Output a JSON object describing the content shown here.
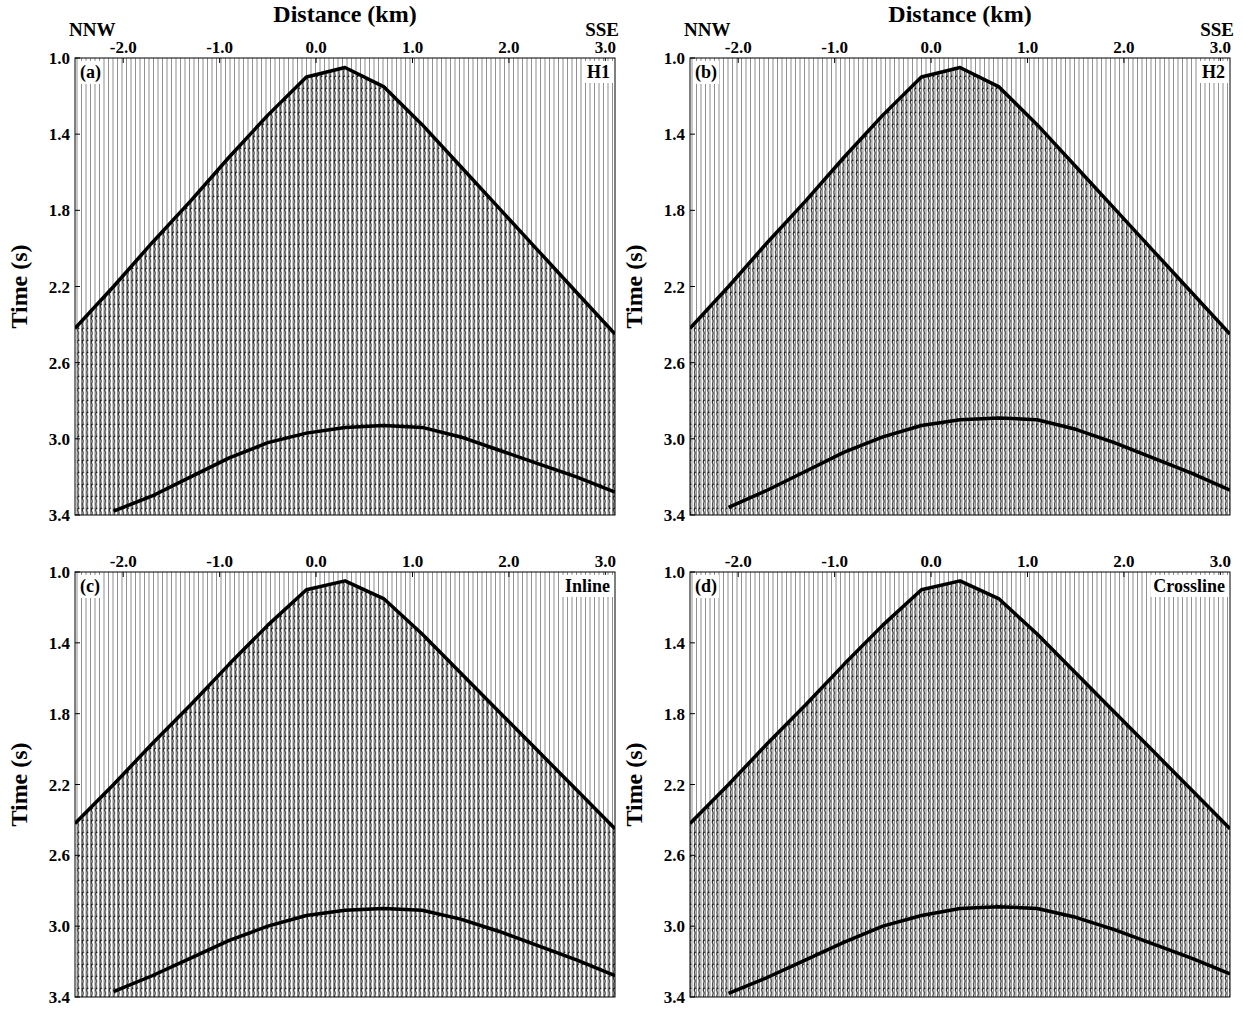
{
  "chart_data": [
    {
      "type": "line",
      "panel_label": "(a)",
      "title": "H1",
      "xlabel": "Distance (km)",
      "ylabel": "Time (s)",
      "annotations": [
        "NNW",
        "SSE"
      ],
      "xlim": [
        -2.5,
        3.1
      ],
      "ylim": [
        1,
        3.4
      ],
      "xticks": [
        {
          "value": -2,
          "label": "-2.0"
        },
        {
          "value": -1,
          "label": "-1.0"
        },
        {
          "value": 0,
          "label": "0.0"
        },
        {
          "value": 1,
          "label": "1.0"
        },
        {
          "value": 2,
          "label": "2.0"
        },
        {
          "value": 3,
          "label": "3.0"
        }
      ],
      "yticks": [
        {
          "value": 1,
          "label": "1.0"
        },
        {
          "value": 1.4,
          "label": "1.4"
        },
        {
          "value": 1.8,
          "label": "1.8"
        },
        {
          "value": 2.2,
          "label": "2.2"
        },
        {
          "value": 2.6,
          "label": "2.6"
        },
        {
          "value": 3,
          "label": "3.0"
        },
        {
          "value": 3.4,
          "label": "3.4"
        }
      ],
      "grid": false,
      "x": [
        -2.5,
        -2.1,
        -1.7,
        -1.3,
        -0.9,
        -0.5,
        -0.1,
        0.3,
        0.7,
        1.1,
        1.5,
        1.9,
        2.3,
        2.7,
        3.1
      ],
      "series": [
        {
          "color": "#000000",
          "values": [
            2.42,
            2.2,
            1.97,
            1.75,
            1.52,
            1.3,
            1.1,
            1.05,
            1.15,
            1.35,
            1.57,
            1.79,
            2.01,
            2.23,
            2.45
          ]
        },
        {
          "color": "#000000",
          "values": [
            null,
            3.38,
            3.3,
            3.2,
            3.1,
            3.02,
            2.97,
            2.94,
            2.93,
            2.94,
            2.99,
            3.06,
            3.13,
            3.2,
            3.28
          ]
        }
      ]
    },
    {
      "type": "line",
      "panel_label": "(b)",
      "title": "H2",
      "xlabel": "Distance (km)",
      "ylabel": "Time (s)",
      "annotations": [
        "NNW",
        "SSE"
      ],
      "xlim": [
        -2.5,
        3.1
      ],
      "ylim": [
        1,
        3.4
      ],
      "xticks": [
        {
          "value": -2,
          "label": "-2.0"
        },
        {
          "value": -1,
          "label": "-1.0"
        },
        {
          "value": 0,
          "label": "0.0"
        },
        {
          "value": 1,
          "label": "1.0"
        },
        {
          "value": 2,
          "label": "2.0"
        },
        {
          "value": 3,
          "label": "3.0"
        }
      ],
      "yticks": [
        {
          "value": 1,
          "label": "1.0"
        },
        {
          "value": 1.4,
          "label": "1.4"
        },
        {
          "value": 1.8,
          "label": "1.8"
        },
        {
          "value": 2.2,
          "label": "2.2"
        },
        {
          "value": 2.6,
          "label": "2.6"
        },
        {
          "value": 3,
          "label": "3.0"
        },
        {
          "value": 3.4,
          "label": "3.4"
        }
      ],
      "grid": false,
      "x": [
        -2.5,
        -2.1,
        -1.7,
        -1.3,
        -0.9,
        -0.5,
        -0.1,
        0.3,
        0.7,
        1.1,
        1.5,
        1.9,
        2.3,
        2.7,
        3.1
      ],
      "series": [
        {
          "color": "#000000",
          "values": [
            2.42,
            2.2,
            1.97,
            1.75,
            1.52,
            1.3,
            1.1,
            1.05,
            1.15,
            1.35,
            1.57,
            1.79,
            2.01,
            2.23,
            2.45
          ]
        },
        {
          "color": "#000000",
          "values": [
            null,
            3.36,
            3.27,
            3.17,
            3.07,
            2.99,
            2.93,
            2.9,
            2.89,
            2.9,
            2.95,
            3.02,
            3.1,
            3.18,
            3.27
          ]
        }
      ]
    },
    {
      "type": "line",
      "panel_label": "(c)",
      "title": "Inline",
      "ylabel": "Time (s)",
      "xlim": [
        -2.5,
        3.1
      ],
      "ylim": [
        1,
        3.4
      ],
      "xticks": [
        {
          "value": -2,
          "label": "-2.0"
        },
        {
          "value": -1,
          "label": "-1.0"
        },
        {
          "value": 0,
          "label": "0.0"
        },
        {
          "value": 1,
          "label": "1.0"
        },
        {
          "value": 2,
          "label": "2.0"
        },
        {
          "value": 3,
          "label": "3.0"
        }
      ],
      "yticks": [
        {
          "value": 1,
          "label": "1.0"
        },
        {
          "value": 1.4,
          "label": "1.4"
        },
        {
          "value": 1.8,
          "label": "1.8"
        },
        {
          "value": 2.2,
          "label": "2.2"
        },
        {
          "value": 2.6,
          "label": "2.6"
        },
        {
          "value": 3,
          "label": "3.0"
        },
        {
          "value": 3.4,
          "label": "3.4"
        }
      ],
      "grid": false,
      "x": [
        -2.5,
        -2.1,
        -1.7,
        -1.3,
        -0.9,
        -0.5,
        -0.1,
        0.3,
        0.7,
        1.1,
        1.5,
        1.9,
        2.3,
        2.7,
        3.1
      ],
      "series": [
        {
          "color": "#000000",
          "values": [
            2.42,
            2.2,
            1.97,
            1.75,
            1.52,
            1.3,
            1.1,
            1.05,
            1.15,
            1.35,
            1.57,
            1.79,
            2.01,
            2.23,
            2.45
          ]
        },
        {
          "color": "#000000",
          "values": [
            null,
            3.37,
            3.28,
            3.18,
            3.08,
            3.0,
            2.94,
            2.91,
            2.9,
            2.91,
            2.96,
            3.03,
            3.11,
            3.19,
            3.28
          ]
        }
      ]
    },
    {
      "type": "line",
      "panel_label": "(d)",
      "title": "Crossline",
      "ylabel": "Time (s)",
      "xlim": [
        -2.5,
        3.1
      ],
      "ylim": [
        1,
        3.4
      ],
      "xticks": [
        {
          "value": -2,
          "label": "-2.0"
        },
        {
          "value": -1,
          "label": "-1.0"
        },
        {
          "value": 0,
          "label": "0.0"
        },
        {
          "value": 1,
          "label": "1.0"
        },
        {
          "value": 2,
          "label": "2.0"
        },
        {
          "value": 3,
          "label": "3.0"
        }
      ],
      "yticks": [
        {
          "value": 1,
          "label": "1.0"
        },
        {
          "value": 1.4,
          "label": "1.4"
        },
        {
          "value": 1.8,
          "label": "1.8"
        },
        {
          "value": 2.2,
          "label": "2.2"
        },
        {
          "value": 2.6,
          "label": "2.6"
        },
        {
          "value": 3,
          "label": "3.0"
        },
        {
          "value": 3.4,
          "label": "3.4"
        }
      ],
      "grid": false,
      "x": [
        -2.5,
        -2.1,
        -1.7,
        -1.3,
        -0.9,
        -0.5,
        -0.1,
        0.3,
        0.7,
        1.1,
        1.5,
        1.9,
        2.3,
        2.7,
        3.1
      ],
      "series": [
        {
          "color": "#000000",
          "values": [
            2.42,
            2.2,
            1.97,
            1.75,
            1.52,
            1.3,
            1.1,
            1.05,
            1.15,
            1.35,
            1.57,
            1.79,
            2.01,
            2.23,
            2.45
          ]
        },
        {
          "color": "#000000",
          "values": [
            null,
            3.38,
            3.29,
            3.19,
            3.09,
            3.0,
            2.94,
            2.9,
            2.89,
            2.9,
            2.95,
            3.02,
            3.1,
            3.18,
            3.27
          ]
        }
      ]
    }
  ]
}
